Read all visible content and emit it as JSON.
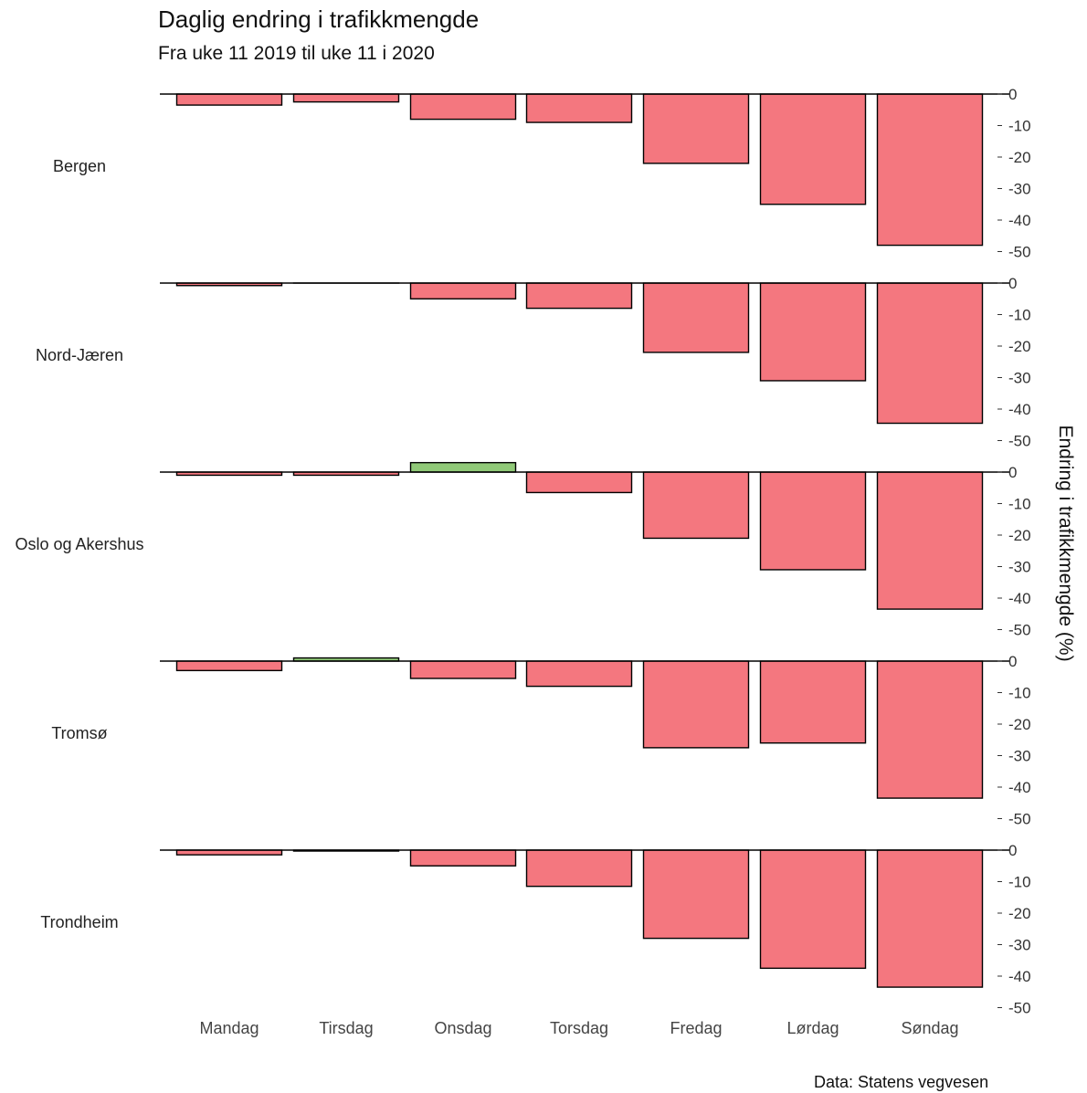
{
  "chart_data": {
    "type": "bar",
    "title": "Daglig endring i trafikkmengde",
    "subtitle": "Fra uke 11 2019 til uke 11 i 2020",
    "caption": "Data: Statens vegvesen",
    "ylabel": "Endring i trafikkmengde (%)",
    "xlabel": "",
    "categories": [
      "Mandag",
      "Tirsdag",
      "Onsdag",
      "Torsdag",
      "Fredag",
      "Lørdag",
      "Søndag"
    ],
    "ylim": [
      -53,
      0
    ],
    "yticks": [
      0,
      -10,
      -20,
      -30,
      -40,
      -50
    ],
    "ytick_labels": [
      "0",
      "-10",
      "-20",
      "-30",
      "-40",
      "-50"
    ],
    "legend": "none",
    "grid": false,
    "colors": {
      "negative": "#f4777f",
      "positive": "#90c978",
      "outline": "#000000"
    },
    "facets": [
      {
        "name": "Bergen",
        "values": [
          -3.5,
          -2.5,
          -8,
          -9,
          -22,
          -35,
          -48
        ]
      },
      {
        "name": "Nord-Jæren",
        "values": [
          -0.8,
          0,
          -5,
          -8,
          -22,
          -31,
          -44.5
        ]
      },
      {
        "name": "Oslo og Akershus",
        "values": [
          -1,
          -1,
          3,
          -6.5,
          -21,
          -31,
          -43.5
        ]
      },
      {
        "name": "Tromsø",
        "values": [
          -3,
          1,
          -5.5,
          -8,
          -27.5,
          -26,
          -43.5
        ]
      },
      {
        "name": "Trondheim",
        "values": [
          -1.5,
          -0.3,
          -5,
          -11.5,
          -28,
          -37.5,
          -43.5
        ]
      }
    ]
  }
}
